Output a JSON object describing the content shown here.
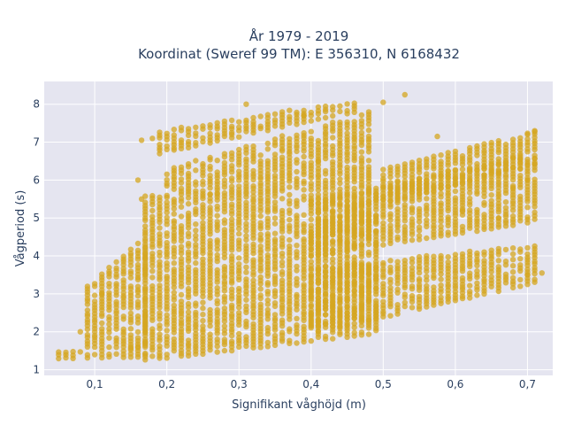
{
  "chart_data": {
    "type": "scatter",
    "title": "År 1979 - 2019",
    "subtitle": "Koordinat (Sweref 99 TM): E 356310, N 6168432",
    "xlabel": "Signifikant våghöjd (m)",
    "ylabel": "Vågperiod (s)",
    "xlim": [
      0.03,
      0.735
    ],
    "ylim": [
      0.85,
      8.6
    ],
    "x_ticks": [
      0.1,
      0.2,
      0.3,
      0.4,
      0.5,
      0.6,
      0.7
    ],
    "x_tick_labels": [
      "0,1",
      "0,2",
      "0,3",
      "0,4",
      "0,5",
      "0,6",
      "0,7"
    ],
    "y_ticks": [
      1,
      2,
      3,
      4,
      5,
      6,
      7,
      8
    ],
    "y_tick_labels": [
      "1",
      "2",
      "3",
      "4",
      "5",
      "6",
      "7",
      "8"
    ],
    "grid": true,
    "marker_color": "#D4A520",
    "background_color": "#E5E5F0",
    "bands": [
      {
        "x_from": 0.05,
        "x_to": 0.17,
        "y_min_from": 1.3,
        "y_min_to": 1.35,
        "y_max_from": 1.5,
        "y_max_to": 1.6
      },
      {
        "x_from": 0.09,
        "x_to": 0.17,
        "y_min_from": 1.6,
        "y_min_to": 1.6,
        "y_max_from": 3.2,
        "y_max_to": 4.5
      },
      {
        "x_from": 0.17,
        "x_to": 0.49,
        "y_min_from": 1.25,
        "y_min_to": 1.95,
        "y_max_from": 5.6,
        "y_max_to": 5.7
      },
      {
        "x_from": 0.2,
        "x_to": 0.48,
        "y_min_from": 5.6,
        "y_min_to": 5.8,
        "y_max_from": 6.3,
        "y_max_to": 7.8
      },
      {
        "x_from": 0.19,
        "x_to": 0.46,
        "y_min_from": 6.7,
        "y_min_to": 7.8,
        "y_max_from": 7.3,
        "y_max_to": 8.1
      },
      {
        "x_from": 0.4,
        "x_to": 0.71,
        "y_min_from": 1.95,
        "y_min_to": 3.3,
        "y_max_from": 3.7,
        "y_max_to": 4.3
      },
      {
        "x_from": 0.4,
        "x_to": 0.71,
        "y_min_from": 4.0,
        "y_min_to": 4.9,
        "y_max_from": 5.5,
        "y_max_to": 6.7
      },
      {
        "x_from": 0.5,
        "x_to": 0.71,
        "y_min_from": 5.4,
        "y_min_to": 6.4,
        "y_max_from": 6.3,
        "y_max_to": 7.3
      }
    ],
    "points": [
      {
        "x": 0.53,
        "y": 8.25
      },
      {
        "x": 0.165,
        "y": 7.05
      },
      {
        "x": 0.18,
        "y": 7.1
      },
      {
        "x": 0.16,
        "y": 6.0
      },
      {
        "x": 0.165,
        "y": 5.5
      },
      {
        "x": 0.08,
        "y": 2.0
      },
      {
        "x": 0.11,
        "y": 3.0
      },
      {
        "x": 0.12,
        "y": 2.2
      },
      {
        "x": 0.72,
        "y": 3.55
      },
      {
        "x": 0.7,
        "y": 3.5
      },
      {
        "x": 0.71,
        "y": 7.3
      },
      {
        "x": 0.7,
        "y": 7.2
      },
      {
        "x": 0.575,
        "y": 7.15
      },
      {
        "x": 0.46,
        "y": 7.0
      },
      {
        "x": 0.41,
        "y": 6.5
      },
      {
        "x": 0.31,
        "y": 8.0
      },
      {
        "x": 0.39,
        "y": 7.7
      },
      {
        "x": 0.5,
        "y": 8.05
      },
      {
        "x": 0.7,
        "y": 6.0
      },
      {
        "x": 0.71,
        "y": 5.7
      },
      {
        "x": 0.68,
        "y": 5.8
      },
      {
        "x": 0.61,
        "y": 5.2
      },
      {
        "x": 0.66,
        "y": 5.0
      }
    ]
  }
}
